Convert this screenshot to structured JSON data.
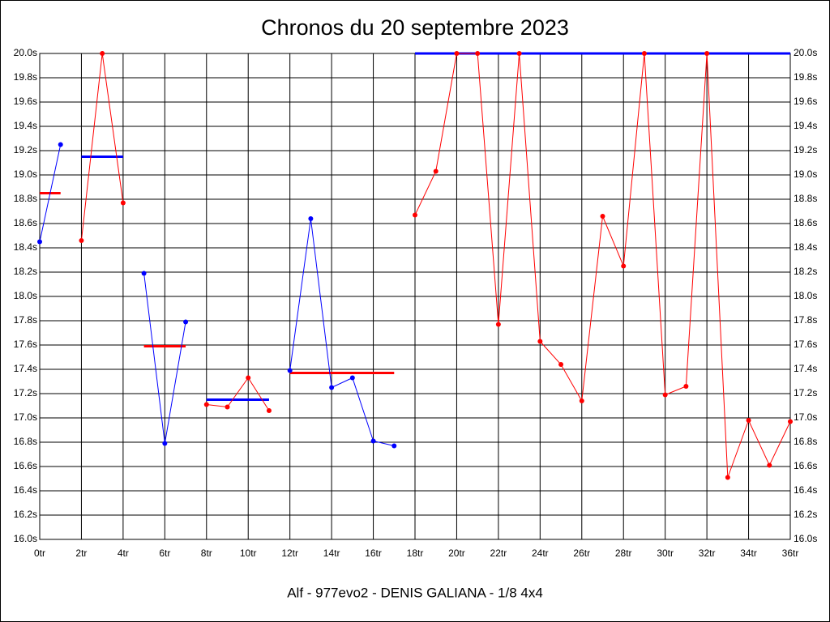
{
  "chart_data": {
    "type": "line",
    "title": "Chronos du 20 septembre 2023",
    "xlabel": "Alf - 977evo2 - DENIS GALIANA - 1/8 4x4",
    "xlim": [
      0,
      36
    ],
    "ylim": [
      16,
      20
    ],
    "grid": true,
    "xticks": [
      {
        "value": 0,
        "label": "0tr"
      },
      {
        "value": 2,
        "label": "2tr"
      },
      {
        "value": 4,
        "label": "4tr"
      },
      {
        "value": 6,
        "label": "6tr"
      },
      {
        "value": 8,
        "label": "8tr"
      },
      {
        "value": 10,
        "label": "10tr"
      },
      {
        "value": 12,
        "label": "12tr"
      },
      {
        "value": 14,
        "label": "14tr"
      },
      {
        "value": 16,
        "label": "16tr"
      },
      {
        "value": 18,
        "label": "18tr"
      },
      {
        "value": 20,
        "label": "20tr"
      },
      {
        "value": 22,
        "label": "22tr"
      },
      {
        "value": 24,
        "label": "24tr"
      },
      {
        "value": 26,
        "label": "26tr"
      },
      {
        "value": 28,
        "label": "28tr"
      },
      {
        "value": 30,
        "label": "30tr"
      },
      {
        "value": 32,
        "label": "32tr"
      },
      {
        "value": 34,
        "label": "34tr"
      },
      {
        "value": 36,
        "label": "36tr"
      }
    ],
    "yticks": [
      {
        "value": 16,
        "label": "16.0s"
      },
      {
        "value": 16.2,
        "label": "16.2s"
      },
      {
        "value": 16.4,
        "label": "16.4s"
      },
      {
        "value": 16.6,
        "label": "16.6s"
      },
      {
        "value": 16.8,
        "label": "16.8s"
      },
      {
        "value": 17,
        "label": "17.0s"
      },
      {
        "value": 17.2,
        "label": "17.2s"
      },
      {
        "value": 17.4,
        "label": "17.4s"
      },
      {
        "value": 17.6,
        "label": "17.6s"
      },
      {
        "value": 17.8,
        "label": "17.8s"
      },
      {
        "value": 18,
        "label": "18.0s"
      },
      {
        "value": 18.2,
        "label": "18.2s"
      },
      {
        "value": 18.4,
        "label": "18.4s"
      },
      {
        "value": 18.6,
        "label": "18.6s"
      },
      {
        "value": 18.8,
        "label": "18.8s"
      },
      {
        "value": 19,
        "label": "19.0s"
      },
      {
        "value": 19.2,
        "label": "19.2s"
      },
      {
        "value": 19.4,
        "label": "19.4s"
      },
      {
        "value": 19.6,
        "label": "19.6s"
      },
      {
        "value": 19.8,
        "label": "19.8s"
      },
      {
        "value": 20,
        "label": "20.0s"
      }
    ],
    "series": [
      {
        "color": "#0000ff",
        "x": [
          0,
          1
        ],
        "values": [
          18.45,
          19.25
        ]
      },
      {
        "color": "#ff0000",
        "x": [
          2,
          3,
          4
        ],
        "values": [
          18.46,
          20.0,
          18.77
        ]
      },
      {
        "color": "#0000ff",
        "x": [
          5,
          6,
          7
        ],
        "values": [
          18.19,
          16.79,
          17.79
        ]
      },
      {
        "color": "#ff0000",
        "x": [
          8,
          9,
          10,
          11
        ],
        "values": [
          17.11,
          17.09,
          17.33,
          17.06
        ]
      },
      {
        "color": "#0000ff",
        "x": [
          12,
          13,
          14,
          15,
          16,
          17
        ],
        "values": [
          17.39,
          18.64,
          17.25,
          17.33,
          16.81,
          16.77
        ]
      },
      {
        "color": "#ff0000",
        "x": [
          18,
          19,
          20,
          21,
          22,
          23,
          24,
          25,
          26,
          27,
          28,
          29,
          30,
          31,
          32,
          33,
          34,
          35,
          36
        ],
        "values": [
          18.67,
          19.03,
          20.0,
          20.0,
          17.77,
          20.0,
          17.63,
          17.44,
          17.14,
          18.66,
          18.25,
          20.0,
          17.19,
          17.26,
          20.0,
          16.51,
          16.98,
          16.61,
          16.97
        ]
      }
    ],
    "averages": [
      {
        "color": "#ff0000",
        "x": [
          0,
          1
        ],
        "value": 18.85
      },
      {
        "color": "#0000ff",
        "x": [
          2,
          4
        ],
        "value": 19.15
      },
      {
        "color": "#ff0000",
        "x": [
          5,
          7
        ],
        "value": 17.59
      },
      {
        "color": "#0000ff",
        "x": [
          8,
          11
        ],
        "value": 17.15
      },
      {
        "color": "#ff0000",
        "x": [
          12,
          17
        ],
        "value": 17.37
      },
      {
        "color": "#0000ff",
        "x": [
          18,
          36
        ],
        "value": 20.0
      }
    ]
  }
}
